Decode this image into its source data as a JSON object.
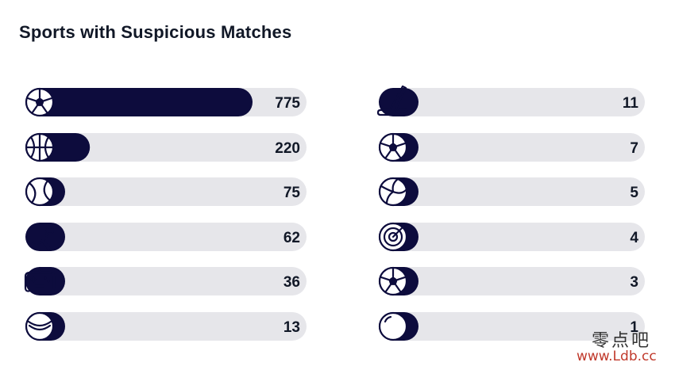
{
  "chart_data": {
    "type": "bar",
    "title": "Sports with Suspicious Matches",
    "xlabel": "",
    "ylabel": "",
    "xlim": [
      0,
      775
    ],
    "bar_color": "#0d0c3d",
    "track_color": "#e6e6ea",
    "series": [
      {
        "values": [
          775,
          220,
          75,
          62,
          36,
          13,
          11,
          7,
          5,
          4,
          3,
          1
        ],
        "icons": [
          "soccer-ball-icon",
          "basketball-icon",
          "tennis-ball-icon",
          "table-tennis-icon",
          "gamepad-icon",
          "cricket-ball-icon",
          "ice-hockey-icon",
          "futsal-ball-icon",
          "volleyball-icon",
          "darts-icon",
          "football-icon",
          "snooker-ball-icon"
        ]
      }
    ]
  },
  "watermark": {
    "chinese": "零点吧",
    "url": "www.Ldb.cc"
  }
}
